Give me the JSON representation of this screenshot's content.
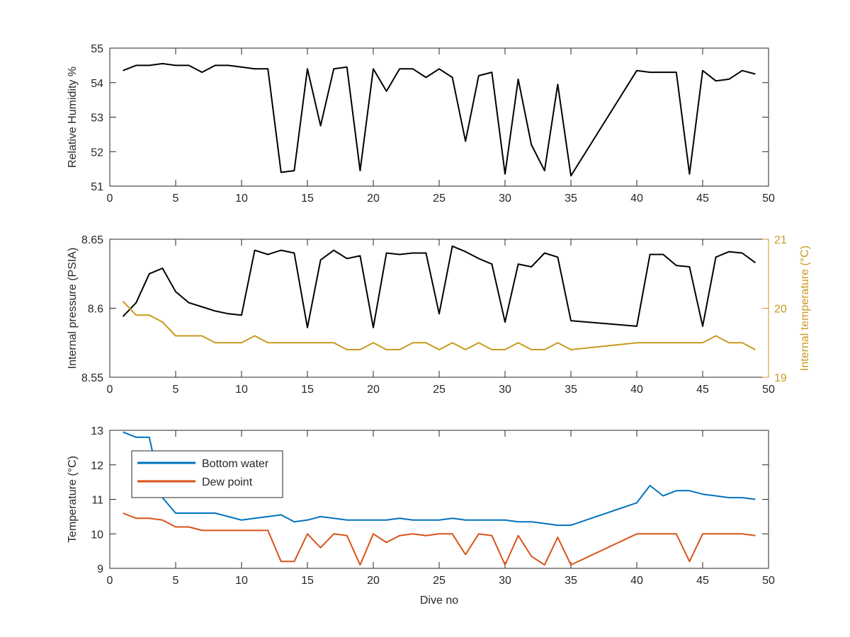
{
  "chart_data": [
    {
      "type": "line",
      "xlabel": "",
      "ylabel": "Relative Humidity %",
      "xlim": [
        0,
        50
      ],
      "ylim": [
        51,
        55
      ],
      "xticks": [
        "0",
        "5",
        "10",
        "15",
        "20",
        "25",
        "30",
        "35",
        "40",
        "45",
        "50"
      ],
      "yticks": [
        "51",
        "52",
        "53",
        "54",
        "55"
      ],
      "grid": false,
      "series": [
        {
          "name": "",
          "color": "#000000",
          "axis": "left",
          "x": [
            1,
            2,
            3,
            4,
            5,
            6,
            7,
            8,
            9,
            10,
            11,
            12,
            13,
            14,
            15,
            16,
            17,
            18,
            19,
            20,
            21,
            22,
            23,
            24,
            25,
            26,
            27,
            28,
            29,
            30,
            31,
            32,
            33,
            34,
            35,
            40,
            41,
            42,
            43,
            44,
            45,
            46,
            47,
            48,
            49
          ],
          "y": [
            54.35,
            54.5,
            54.5,
            54.55,
            54.5,
            54.5,
            54.3,
            54.5,
            54.5,
            54.45,
            54.4,
            54.4,
            51.4,
            51.45,
            54.4,
            52.75,
            54.4,
            54.45,
            51.45,
            54.4,
            53.75,
            54.4,
            54.4,
            54.15,
            54.4,
            54.15,
            52.3,
            54.2,
            54.3,
            51.35,
            54.1,
            52.2,
            51.45,
            53.95,
            51.3,
            54.35,
            54.3,
            54.3,
            54.3,
            51.35,
            54.35,
            54.05,
            54.1,
            54.35,
            54.25
          ]
        }
      ]
    },
    {
      "type": "line",
      "xlabel": "",
      "ylabel": "Internal pressure (PSIA)",
      "ylabel_right": "Internal temperature (°C)",
      "xlim": [
        0,
        50
      ],
      "ylim": [
        8.55,
        8.65
      ],
      "ylim_right": [
        19,
        21
      ],
      "xticks": [
        "0",
        "5",
        "10",
        "15",
        "20",
        "25",
        "30",
        "35",
        "40",
        "45",
        "50"
      ],
      "yticks": [
        "8.55",
        "8.6",
        "8.65"
      ],
      "yticks_right": [
        "19",
        "20",
        "21"
      ],
      "grid": false,
      "series": [
        {
          "name": "",
          "color": "#000000",
          "axis": "left",
          "x": [
            1,
            2,
            3,
            4,
            5,
            6,
            7,
            8,
            9,
            10,
            11,
            12,
            13,
            14,
            15,
            16,
            17,
            18,
            19,
            20,
            21,
            22,
            23,
            24,
            25,
            26,
            27,
            28,
            29,
            30,
            31,
            32,
            33,
            34,
            35,
            40,
            41,
            42,
            43,
            44,
            45,
            46,
            47,
            48,
            49
          ],
          "y": [
            8.594,
            8.604,
            8.625,
            8.629,
            8.612,
            8.604,
            8.601,
            8.598,
            8.596,
            8.595,
            8.642,
            8.639,
            8.642,
            8.64,
            8.586,
            8.635,
            8.642,
            8.636,
            8.638,
            8.586,
            8.64,
            8.639,
            8.64,
            8.64,
            8.596,
            8.645,
            8.641,
            8.636,
            8.632,
            8.59,
            8.632,
            8.63,
            8.64,
            8.637,
            8.591,
            8.587,
            8.639,
            8.639,
            8.631,
            8.63,
            8.587,
            8.637,
            8.641,
            8.64,
            8.633
          ]
        },
        {
          "name": "",
          "color": "#C89A1E",
          "axis": "right",
          "x": [
            1,
            2,
            3,
            4,
            5,
            6,
            7,
            8,
            9,
            10,
            11,
            12,
            13,
            14,
            15,
            16,
            17,
            18,
            19,
            20,
            21,
            22,
            23,
            24,
            25,
            26,
            27,
            28,
            29,
            30,
            31,
            32,
            33,
            34,
            35,
            40,
            41,
            42,
            43,
            44,
            45,
            46,
            47,
            48,
            49
          ],
          "y": [
            20.1,
            19.9,
            19.9,
            19.8,
            19.6,
            19.6,
            19.6,
            19.5,
            19.5,
            19.5,
            19.6,
            19.5,
            19.5,
            19.5,
            19.5,
            19.5,
            19.5,
            19.4,
            19.4,
            19.5,
            19.4,
            19.4,
            19.5,
            19.5,
            19.4,
            19.5,
            19.4,
            19.5,
            19.4,
            19.4,
            19.5,
            19.4,
            19.4,
            19.5,
            19.4,
            19.5,
            19.5,
            19.5,
            19.5,
            19.5,
            19.5,
            19.6,
            19.5,
            19.5,
            19.4
          ]
        }
      ]
    },
    {
      "type": "line",
      "xlabel": "Dive no",
      "ylabel": "Temperature (°C)",
      "xlim": [
        0,
        50
      ],
      "ylim": [
        9,
        13
      ],
      "xticks": [
        "0",
        "5",
        "10",
        "15",
        "20",
        "25",
        "30",
        "35",
        "40",
        "45",
        "50"
      ],
      "yticks": [
        "9",
        "10",
        "11",
        "12",
        "13"
      ],
      "grid": false,
      "legend": "top-left",
      "series": [
        {
          "name": "Bottom water",
          "color": "#0072BD",
          "axis": "left",
          "x": [
            1,
            2,
            3,
            4,
            5,
            6,
            7,
            8,
            9,
            10,
            11,
            12,
            13,
            14,
            15,
            16,
            17,
            18,
            19,
            20,
            21,
            22,
            23,
            24,
            25,
            26,
            27,
            28,
            29,
            30,
            31,
            32,
            33,
            34,
            35,
            40,
            41,
            42,
            43,
            44,
            45,
            46,
            47,
            48,
            49
          ],
          "y": [
            12.95,
            12.8,
            12.8,
            11.05,
            10.6,
            10.6,
            10.6,
            10.6,
            10.5,
            10.4,
            10.45,
            10.5,
            10.55,
            10.35,
            10.4,
            10.5,
            10.45,
            10.4,
            10.4,
            10.4,
            10.4,
            10.45,
            10.4,
            10.4,
            10.4,
            10.45,
            10.4,
            10.4,
            10.4,
            10.4,
            10.35,
            10.35,
            10.3,
            10.25,
            10.25,
            10.9,
            11.4,
            11.1,
            11.25,
            11.25,
            11.15,
            11.1,
            11.05,
            11.05,
            11.0
          ]
        },
        {
          "name": "Dew point",
          "color": "#D95319",
          "axis": "left",
          "x": [
            1,
            2,
            3,
            4,
            5,
            6,
            7,
            8,
            9,
            10,
            11,
            12,
            13,
            14,
            15,
            16,
            17,
            18,
            19,
            20,
            21,
            22,
            23,
            24,
            25,
            26,
            27,
            28,
            29,
            30,
            31,
            32,
            33,
            34,
            35,
            40,
            41,
            42,
            43,
            44,
            45,
            46,
            47,
            48,
            49
          ],
          "y": [
            10.6,
            10.45,
            10.45,
            10.4,
            10.2,
            10.2,
            10.1,
            10.1,
            10.1,
            10.1,
            10.1,
            10.1,
            9.2,
            9.2,
            10.0,
            9.6,
            10.0,
            9.95,
            9.1,
            10.0,
            9.75,
            9.95,
            10.0,
            9.95,
            10.0,
            10.0,
            9.4,
            10.0,
            9.95,
            9.1,
            9.95,
            9.35,
            9.1,
            9.9,
            9.1,
            10.0,
            10.0,
            10.0,
            10.0,
            9.2,
            10.0,
            10.0,
            10.0,
            10.0,
            9.95
          ]
        }
      ]
    }
  ]
}
